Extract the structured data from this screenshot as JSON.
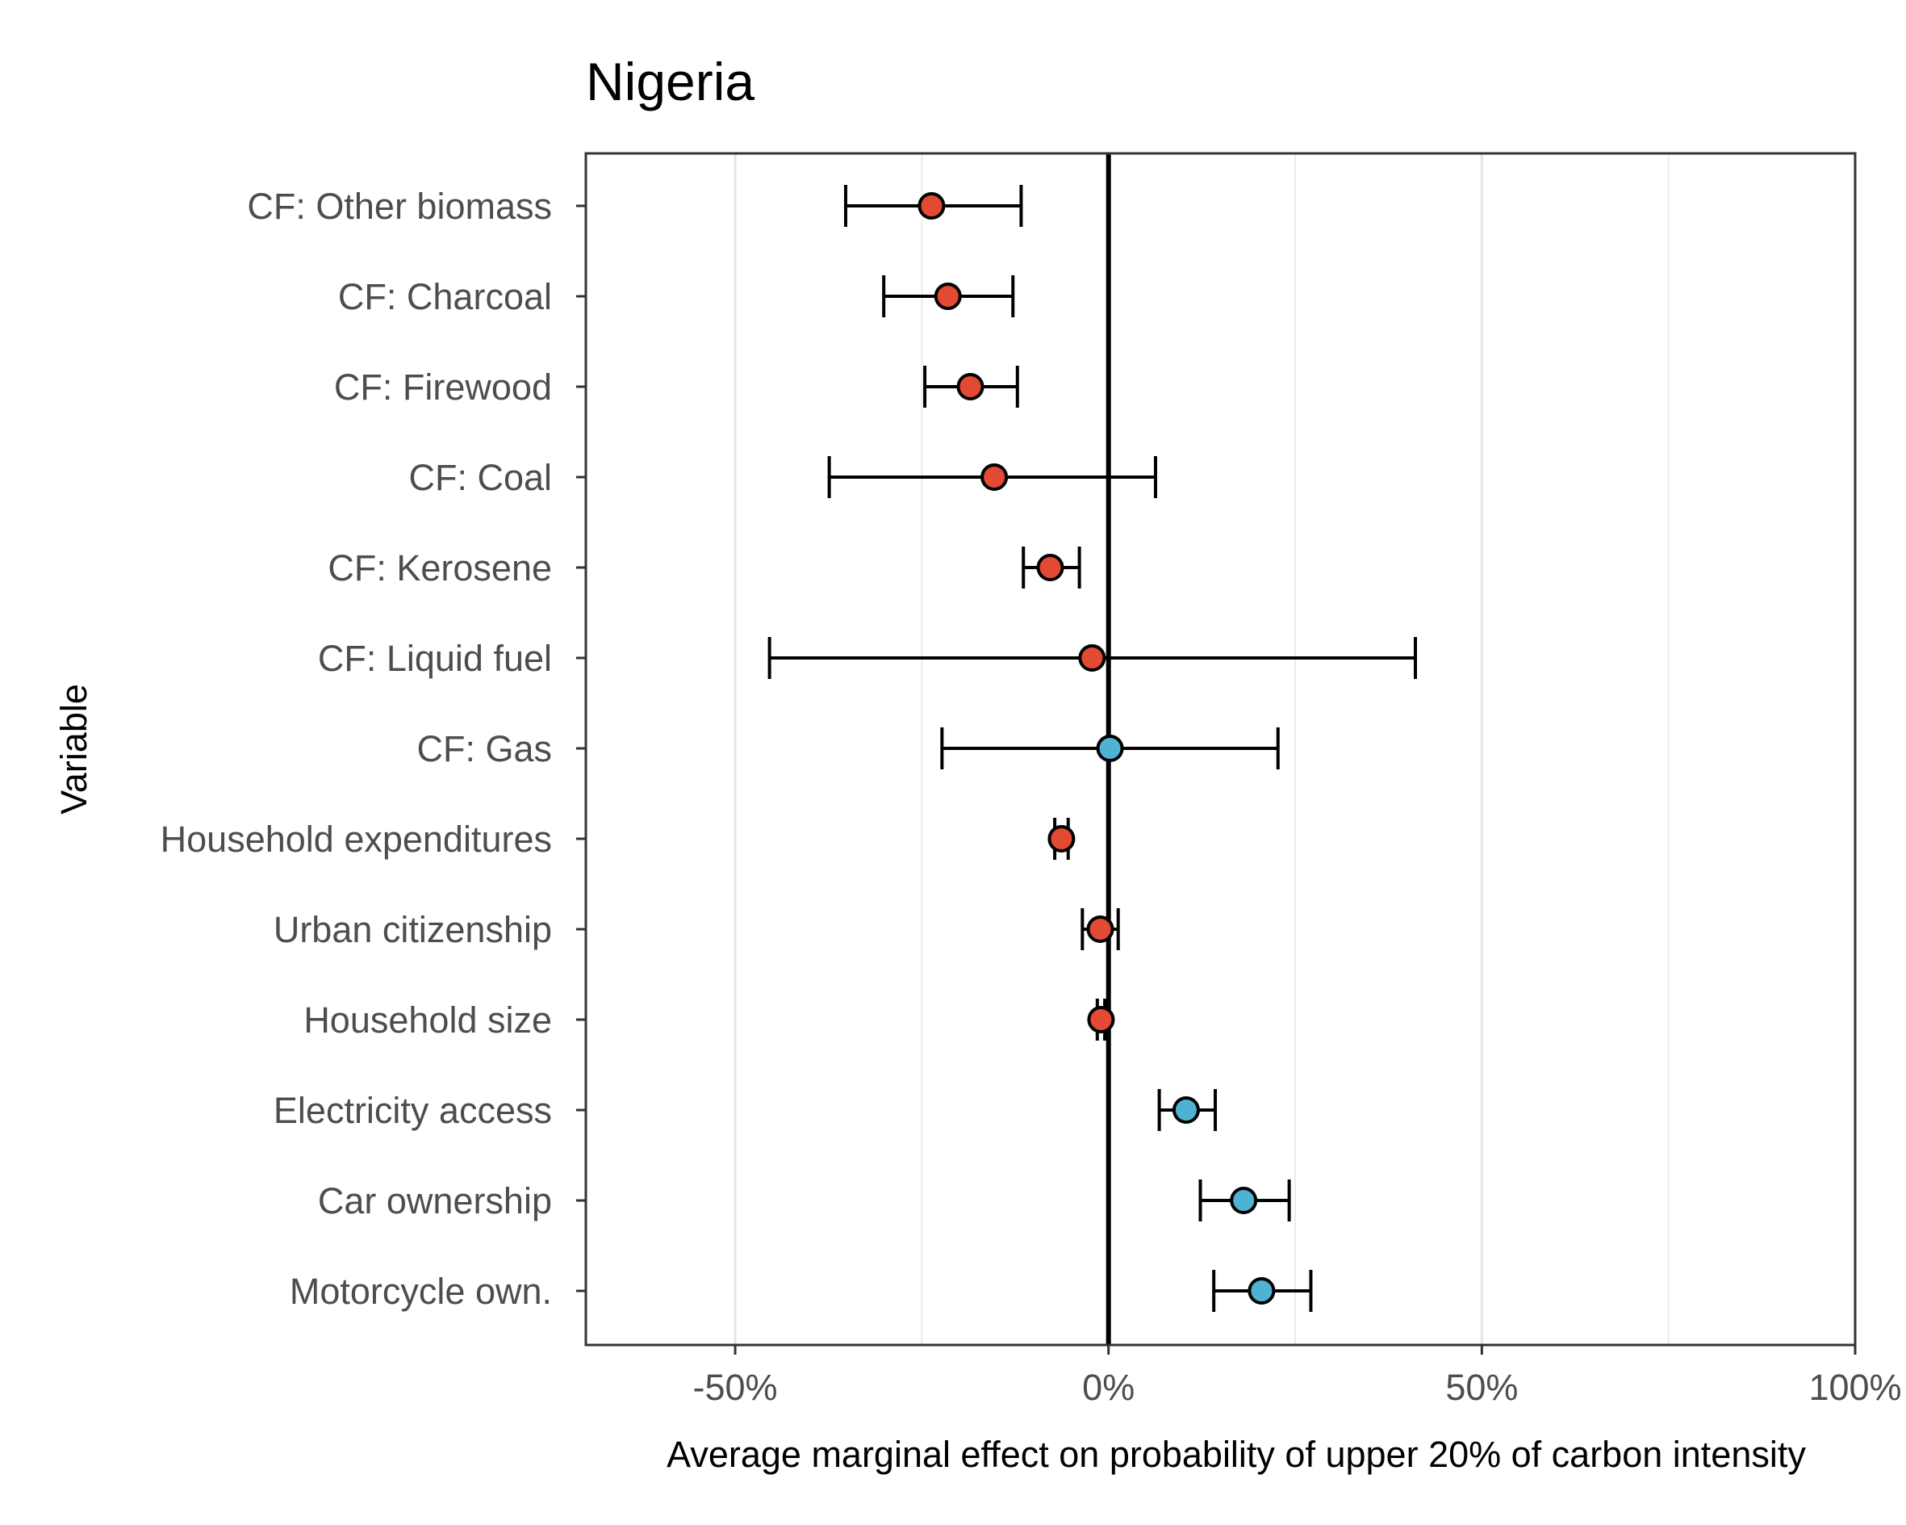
{
  "chart_data": {
    "type": "scatter",
    "title": "Nigeria",
    "xlabel": "Average marginal effect on probability of upper 20% of carbon intensity",
    "ylabel": "Variable",
    "xlim": [
      -0.7,
      1.0
    ],
    "x_ticks": [
      {
        "value": -0.5,
        "label": "-50%"
      },
      {
        "value": 0.0,
        "label": "0%"
      },
      {
        "value": 0.5,
        "label": "50%"
      },
      {
        "value": 1.0,
        "label": "100%"
      }
    ],
    "x_minor_gridlines": [
      -0.25,
      0.25,
      0.75
    ],
    "grid": true,
    "reference_line": 0,
    "colors": {
      "negative": "#e34a33",
      "positive": "#4eb3d3"
    },
    "points": [
      {
        "label": "CF: Other biomass",
        "estimate": -0.237,
        "low": -0.352,
        "high": -0.117,
        "sign": "negative"
      },
      {
        "label": "CF: Charcoal",
        "estimate": -0.215,
        "low": -0.301,
        "high": -0.128,
        "sign": "negative"
      },
      {
        "label": "CF: Firewood",
        "estimate": -0.185,
        "low": -0.246,
        "high": -0.122,
        "sign": "negative"
      },
      {
        "label": "CF: Coal",
        "estimate": -0.153,
        "low": -0.374,
        "high": 0.063,
        "sign": "negative"
      },
      {
        "label": "CF: Kerosene",
        "estimate": -0.078,
        "low": -0.114,
        "high": -0.039,
        "sign": "negative"
      },
      {
        "label": "CF: Liquid fuel",
        "estimate": -0.022,
        "low": -0.454,
        "high": 0.411,
        "sign": "negative"
      },
      {
        "label": "CF: Gas",
        "estimate": 0.002,
        "low": -0.223,
        "high": 0.227,
        "sign": "positive"
      },
      {
        "label": "Household expenditures",
        "estimate": -0.063,
        "low": -0.072,
        "high": -0.054,
        "sign": "negative"
      },
      {
        "label": "Urban citizenship",
        "estimate": -0.011,
        "low": -0.035,
        "high": 0.013,
        "sign": "negative"
      },
      {
        "label": "Household size",
        "estimate": -0.01,
        "low": -0.015,
        "high": -0.005,
        "sign": "negative"
      },
      {
        "label": "Electricity access",
        "estimate": 0.104,
        "low": 0.068,
        "high": 0.143,
        "sign": "positive"
      },
      {
        "label": "Car ownership",
        "estimate": 0.181,
        "low": 0.123,
        "high": 0.242,
        "sign": "positive"
      },
      {
        "label": "Motorcycle own.",
        "estimate": 0.205,
        "low": 0.141,
        "high": 0.271,
        "sign": "positive"
      }
    ]
  }
}
